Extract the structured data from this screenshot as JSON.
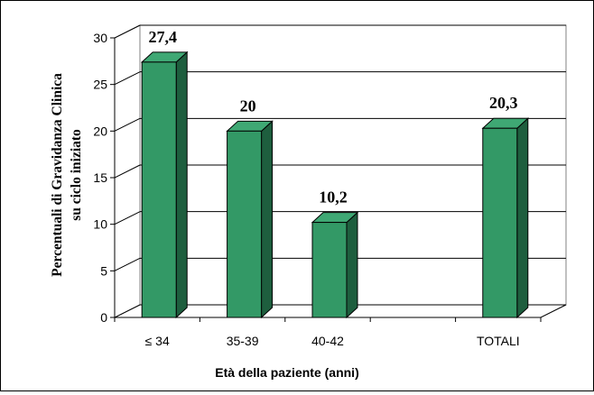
{
  "chart_data": {
    "type": "bar",
    "style": "3d-column",
    "categories": [
      "≤ 34",
      "35-39",
      "40-42",
      "",
      "TOTALI"
    ],
    "values": [
      27.4,
      20,
      10.2,
      null,
      20.3
    ],
    "data_labels": [
      "27,4",
      "20",
      "10,2",
      "",
      "20,3"
    ],
    "ylim": [
      0,
      30
    ],
    "yticks": [
      "0",
      "5",
      "10",
      "15",
      "20",
      "25",
      "30"
    ],
    "ylabel_line1": "Percentuali di Gravidanza Clinica",
    "ylabel_line2": "su ciclo iniziato",
    "xlabel": "Età della paziente (anni)",
    "grid": true,
    "legend": "none",
    "colors": {
      "bar_front": "#339966",
      "bar_top": "#3fa874",
      "bar_side": "#1e5e3e",
      "gridline": "#000000",
      "outline": "#000000"
    }
  }
}
